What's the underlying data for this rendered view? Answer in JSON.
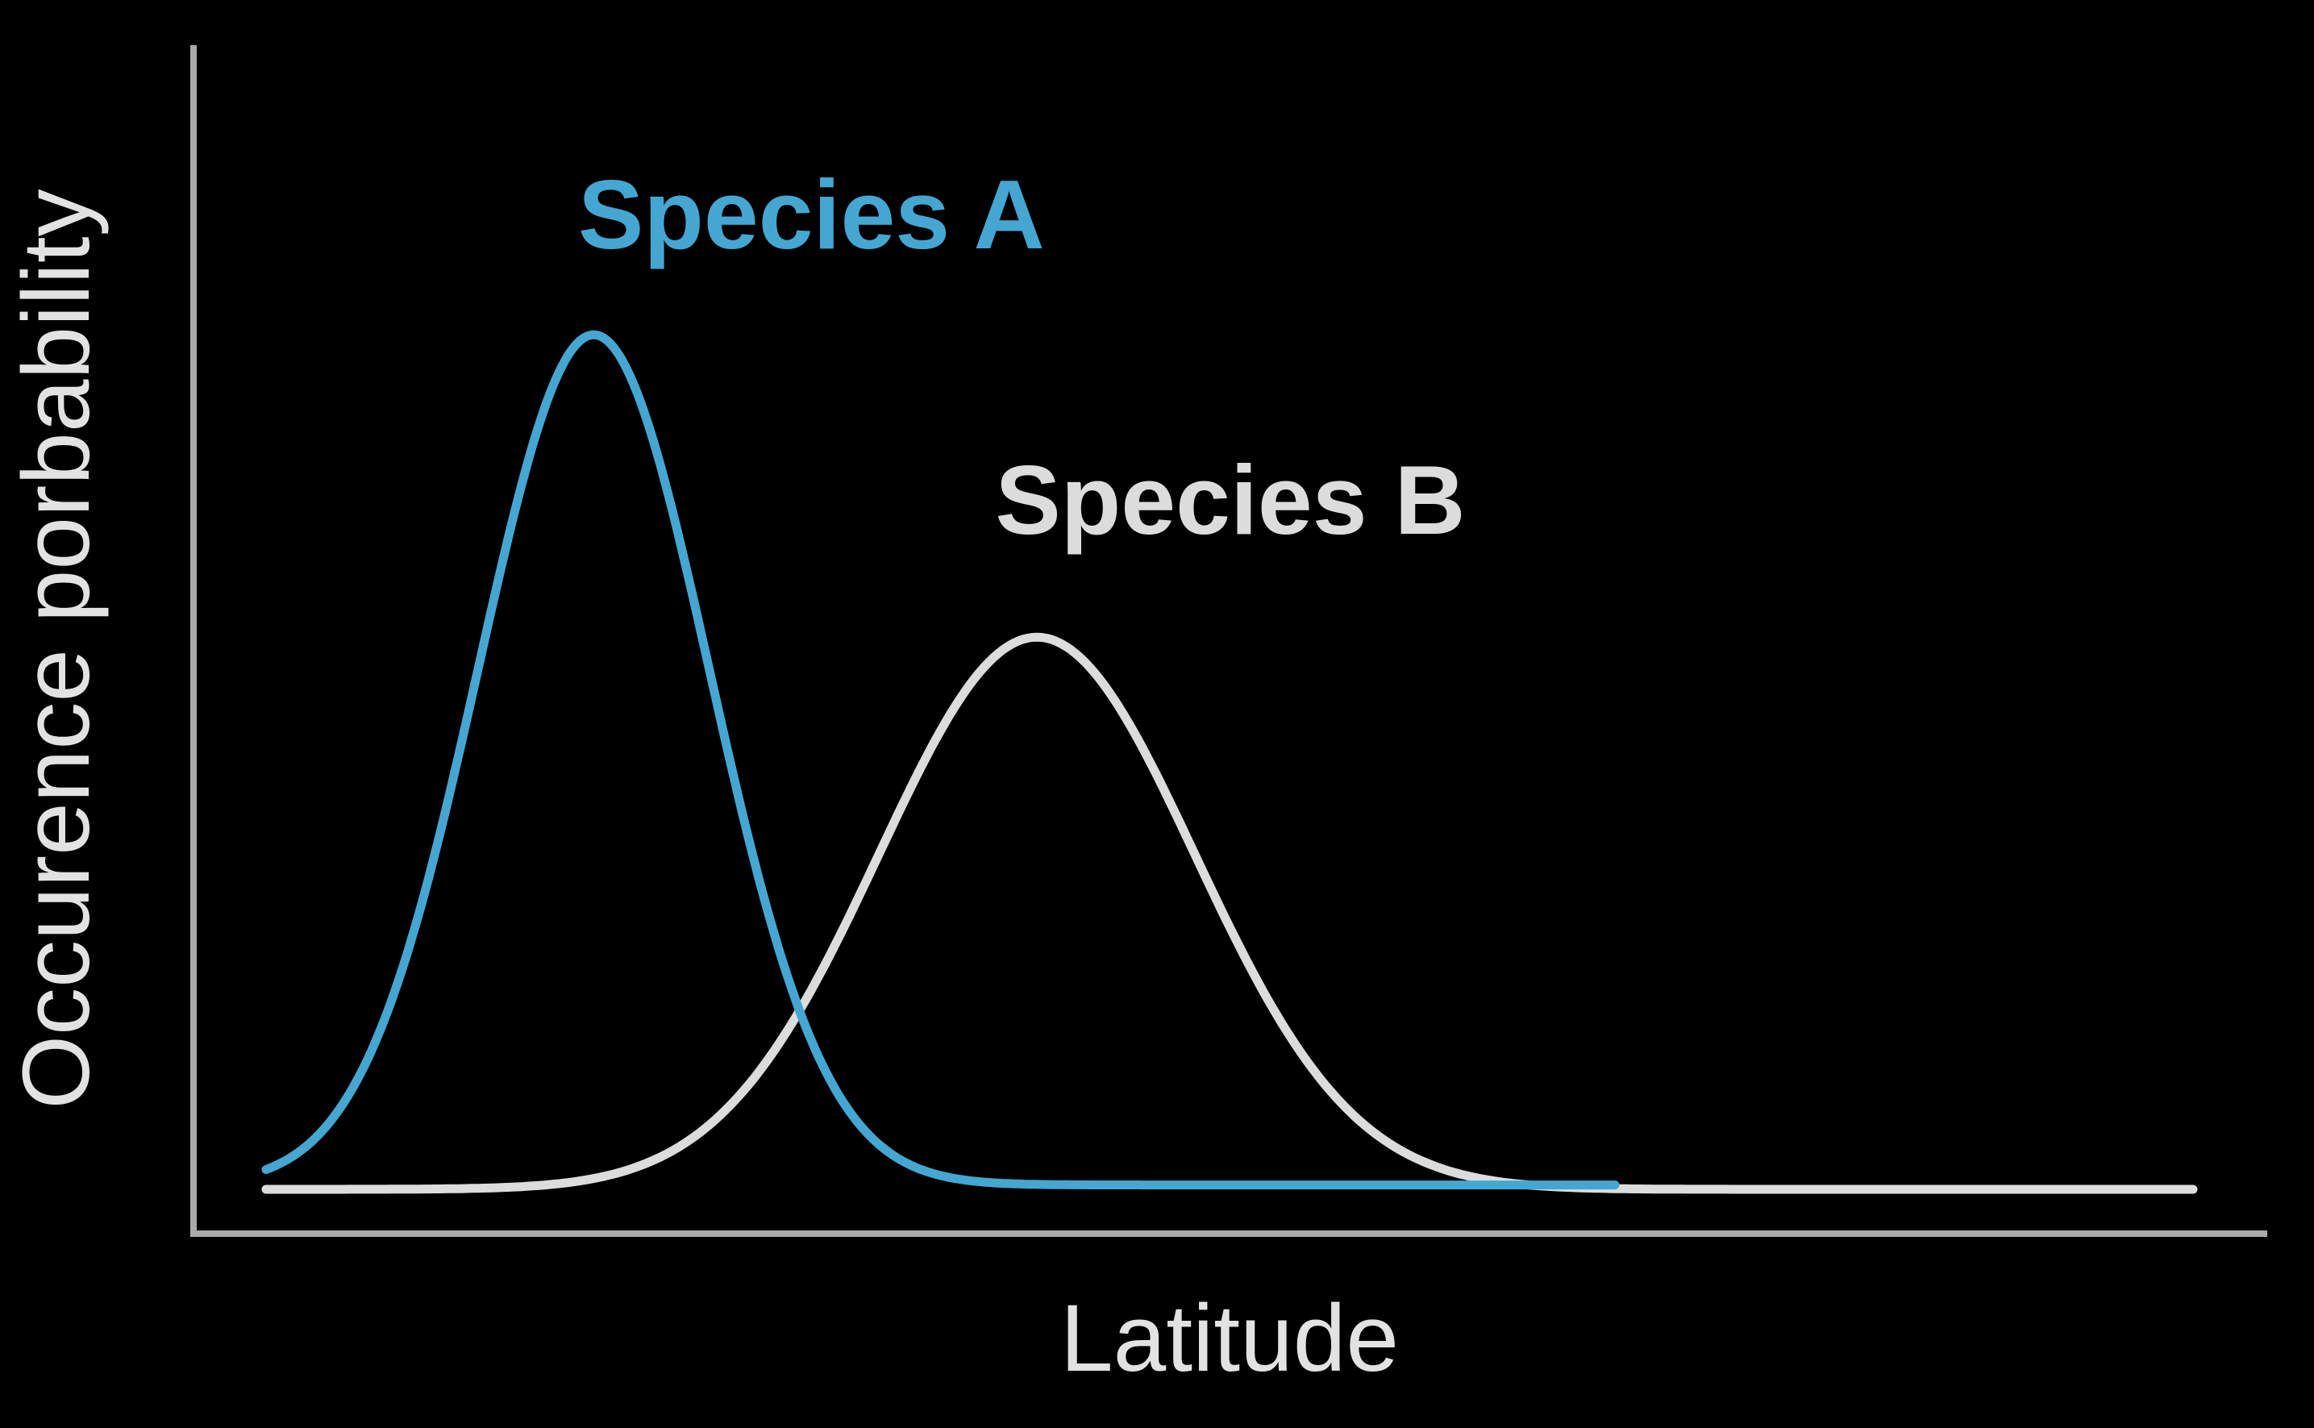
{
  "chart_data": {
    "type": "line",
    "title": "",
    "xlabel": "Latitude",
    "ylabel": "Occurence porbability",
    "xlim": [
      0,
      100
    ],
    "ylim": [
      0,
      1
    ],
    "grid": false,
    "legend": "none",
    "tick_labels": false,
    "series": [
      {
        "name": "Species A",
        "color": "#45a6d2",
        "shape": "gaussian",
        "peak_x": 17,
        "peak_y": 0.97,
        "spread": 6,
        "baseline": 0.005,
        "x_start": 0,
        "x_end": 70
      },
      {
        "name": "Species B",
        "color": "#dcdcdc",
        "shape": "gaussian",
        "peak_x": 40,
        "peak_y": 0.63,
        "spread": 8.2,
        "baseline": 0.0,
        "x_start": 0,
        "x_end": 100
      }
    ],
    "axis_color": "#aaaaaa"
  }
}
